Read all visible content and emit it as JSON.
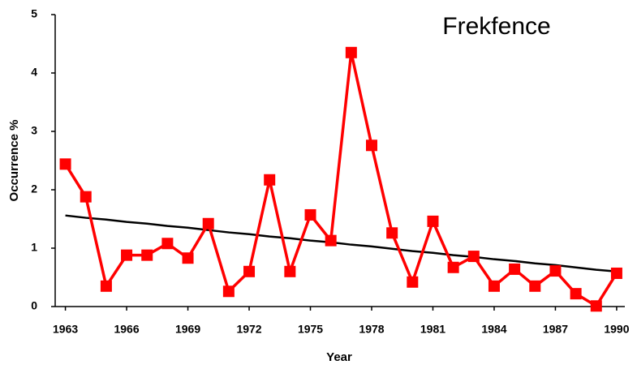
{
  "chart_data": {
    "type": "line",
    "title": "Frekfence",
    "x_label": "Year",
    "y_label": "Occurrence %",
    "x": [
      1963,
      1964,
      1965,
      1966,
      1967,
      1968,
      1969,
      1970,
      1971,
      1972,
      1973,
      1974,
      1975,
      1976,
      1977,
      1978,
      1979,
      1980,
      1981,
      1982,
      1983,
      1984,
      1985,
      1986,
      1987,
      1988,
      1989,
      1990
    ],
    "series": [
      {
        "color": "#ff0000",
        "marker": "square",
        "values": [
          2.44,
          1.88,
          0.35,
          0.88,
          0.88,
          1.08,
          0.83,
          1.42,
          0.26,
          0.6,
          2.17,
          0.6,
          1.57,
          1.13,
          4.35,
          2.76,
          1.26,
          0.42,
          1.46,
          0.67,
          0.86,
          0.35,
          0.64,
          0.35,
          0.61,
          0.22,
          0.01,
          0.57
        ]
      },
      {
        "color": "#000000",
        "values": [
          1.56,
          1.52,
          1.49,
          1.45,
          1.42,
          1.38,
          1.35,
          1.31,
          1.27,
          1.24,
          1.2,
          1.17,
          1.13,
          1.1,
          1.06,
          1.03,
          0.99,
          0.95,
          0.92,
          0.88,
          0.85,
          0.81,
          0.78,
          0.74,
          0.71,
          0.67,
          0.63,
          0.6
        ]
      }
    ],
    "xlim": [
      1962.5,
      1990.4
    ],
    "xticks": [
      1963,
      1966,
      1969,
      1972,
      1975,
      1978,
      1981,
      1984,
      1987,
      1990
    ],
    "ylim": [
      0,
      5
    ],
    "yticks": [
      0,
      1,
      2,
      3,
      4,
      5
    ]
  }
}
